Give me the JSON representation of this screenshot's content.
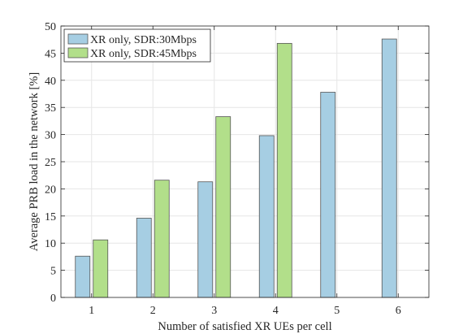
{
  "chart_data": {
    "type": "bar",
    "categories": [
      "1",
      "2",
      "3",
      "4",
      "5",
      "6"
    ],
    "series": [
      {
        "name": "XR only, SDR:30Mbps",
        "color": "#a6cee3",
        "values": [
          7.6,
          14.6,
          21.3,
          29.8,
          37.8,
          47.6
        ]
      },
      {
        "name": "XR only, SDR:45Mbps",
        "color": "#b2df8a",
        "values": [
          10.6,
          21.6,
          33.3,
          46.8,
          0,
          0
        ]
      }
    ],
    "xlabel": "Number of satisfied XR UEs per cell",
    "ylabel": "Average PRB load in the network [%]",
    "ylim": [
      0,
      50
    ],
    "yticks": [
      0,
      5,
      10,
      15,
      20,
      25,
      30,
      35,
      40,
      45,
      50
    ],
    "grid": true,
    "legend": "top-left",
    "bar_edge_color": "#555555"
  }
}
